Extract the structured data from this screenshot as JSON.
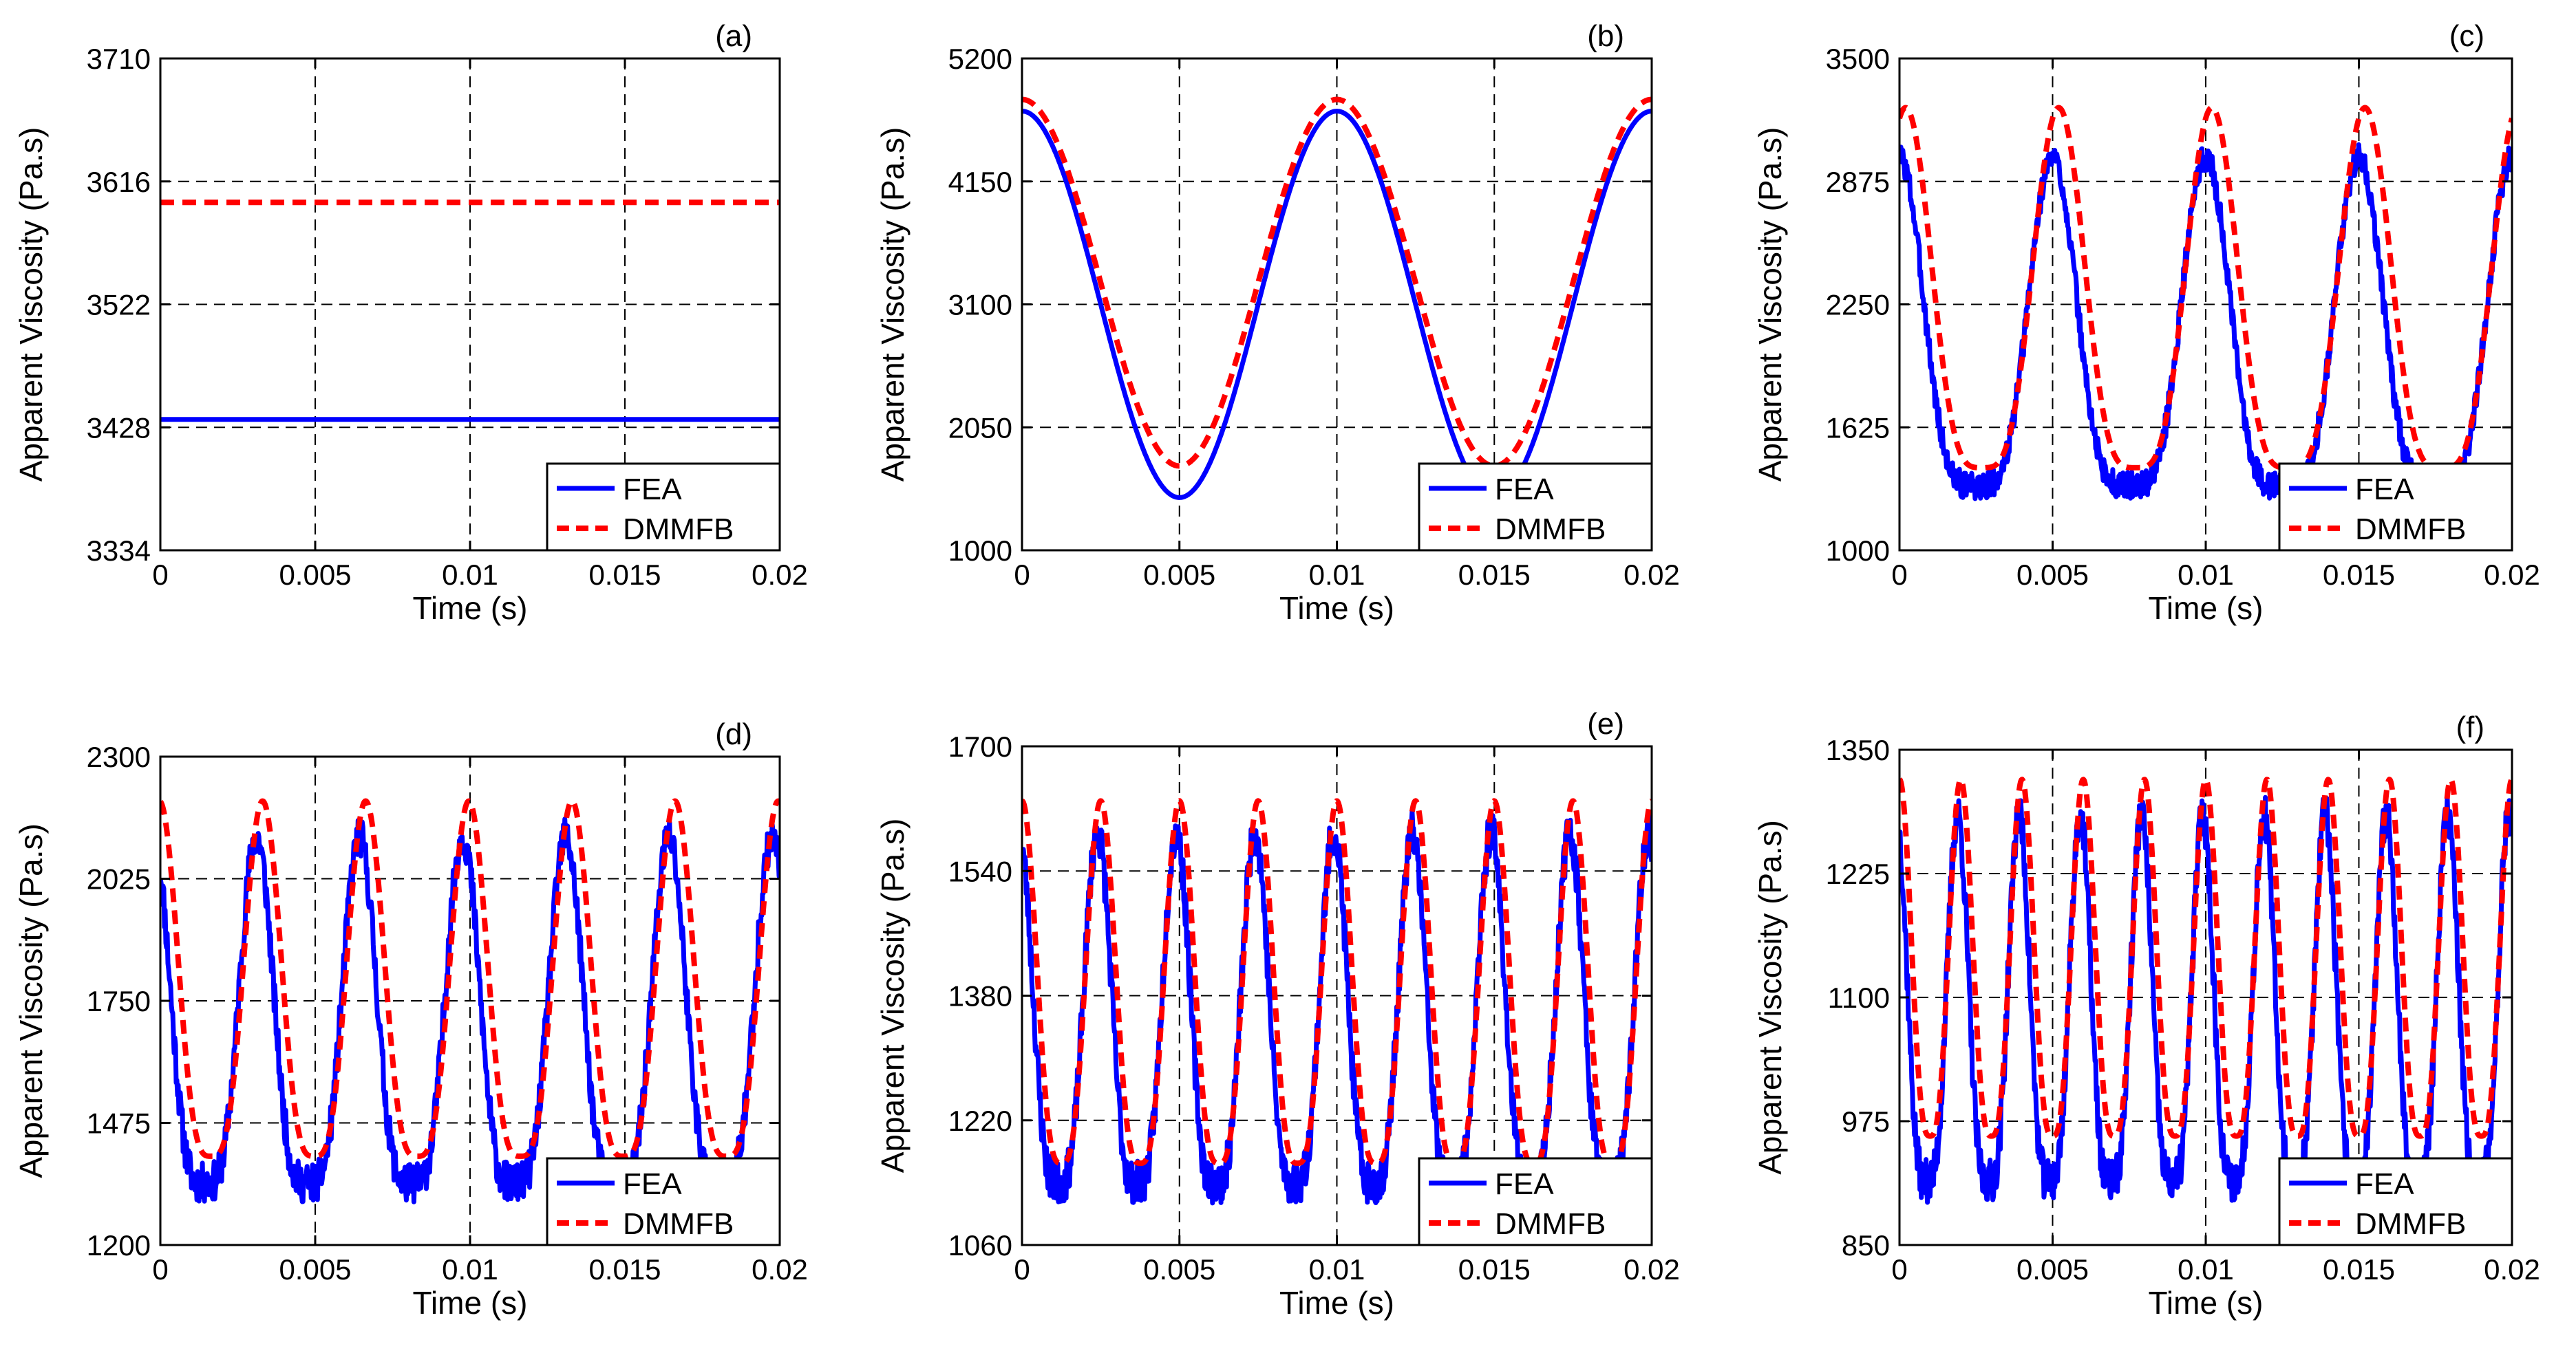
{
  "colors": {
    "fea": "#0000ff",
    "dmmfb": "#ff0000",
    "grid": "#000000",
    "axis": "#000000"
  },
  "legend_labels": [
    "FEA",
    "DMMFB"
  ],
  "chart_data": [
    {
      "type": "line",
      "tag": "(a)",
      "title": "",
      "xlabel": "Time (s)",
      "ylabel": "Apparent Viscosity (Pa.s)",
      "xlim": [
        0,
        0.02
      ],
      "ylim": [
        3334,
        3710
      ],
      "xticks": [
        0,
        0.005,
        0.01,
        0.015,
        0.02
      ],
      "xtick_labels": [
        "0",
        "0.005",
        "0.01",
        "0.015",
        "0.02"
      ],
      "yticks": [
        3334,
        3428,
        3522,
        3616,
        3710
      ],
      "ytick_labels": [
        "3334",
        "3428",
        "3522",
        "3616",
        "3710"
      ],
      "legend_position": "bottom-right",
      "series": [
        {
          "name": "FEA",
          "model": "constant",
          "value": 3434,
          "noise": 0
        },
        {
          "name": "DMMFB",
          "model": "constant",
          "value": 3600,
          "noise": 0
        }
      ]
    },
    {
      "type": "line",
      "tag": "(b)",
      "title": "",
      "xlabel": "Time (s)",
      "ylabel": "Apparent Viscosity (Pa.s)",
      "xlim": [
        0,
        0.02
      ],
      "ylim": [
        1000,
        5200
      ],
      "xticks": [
        0,
        0.005,
        0.01,
        0.015,
        0.02
      ],
      "xtick_labels": [
        "0",
        "0.005",
        "0.01",
        "0.015",
        "0.02"
      ],
      "yticks": [
        1000,
        2050,
        3100,
        4150,
        5200
      ],
      "ytick_labels": [
        "1000",
        "2050",
        "3100",
        "4150",
        "5200"
      ],
      "legend_position": "bottom-right",
      "series": [
        {
          "name": "FEA",
          "model": "periodic",
          "min": 1450,
          "max": 4750,
          "period": 0.01,
          "peak_at": 0,
          "shape": 1.0,
          "noise": 0
        },
        {
          "name": "DMMFB",
          "model": "periodic",
          "min": 1720,
          "max": 4850,
          "period": 0.01,
          "peak_at": 0,
          "shape": 1.0,
          "noise": 0
        }
      ]
    },
    {
      "type": "line",
      "tag": "(c)",
      "title": "",
      "xlabel": "Time (s)",
      "ylabel": "Apparent Viscosity (Pa.s)",
      "xlim": [
        0,
        0.02
      ],
      "ylim": [
        1000,
        3500
      ],
      "xticks": [
        0,
        0.005,
        0.01,
        0.015,
        0.02
      ],
      "xtick_labels": [
        "0",
        "0.005",
        "0.01",
        "0.015",
        "0.02"
      ],
      "yticks": [
        1000,
        1625,
        2250,
        2875,
        3500
      ],
      "ytick_labels": [
        "1000",
        "1625",
        "2250",
        "2875",
        "3500"
      ],
      "legend_position": "bottom-right",
      "series": [
        {
          "name": "FEA",
          "model": "periodic",
          "min": 1330,
          "max": 3000,
          "period": 0.005,
          "peak_at": 0.005,
          "shape": 2.2,
          "noise": 70,
          "seed": 3
        },
        {
          "name": "DMMFB",
          "model": "periodic",
          "min": 1420,
          "max": 3250,
          "period": 0.005,
          "peak_at": 0.0052,
          "shape": 1.9,
          "noise": 0
        }
      ]
    },
    {
      "type": "line",
      "tag": "(d)",
      "title": "",
      "xlabel": "Time (s)",
      "ylabel": "Apparent Viscosity (Pa.s)",
      "xlim": [
        0,
        0.02
      ],
      "ylim": [
        1200,
        2300
      ],
      "xticks": [
        0,
        0.005,
        0.01,
        0.015,
        0.02
      ],
      "xtick_labels": [
        "0",
        "0.005",
        "0.01",
        "0.015",
        "0.02"
      ],
      "yticks": [
        1200,
        1475,
        1750,
        2025,
        2300
      ],
      "ytick_labels": [
        "1200",
        "1475",
        "1750",
        "2025",
        "2300"
      ],
      "legend_position": "bottom-right",
      "series": [
        {
          "name": "FEA",
          "model": "periodic",
          "min": 1340,
          "max": 2120,
          "period": 0.00333,
          "peak_at": 0.0031,
          "shape": 2.0,
          "noise": 45,
          "seed": 11
        },
        {
          "name": "DMMFB",
          "model": "periodic",
          "min": 1400,
          "max": 2200,
          "period": 0.00333,
          "peak_at": 0.0033,
          "shape": 1.7,
          "noise": 0
        }
      ]
    },
    {
      "type": "line",
      "tag": "(e)",
      "title": "",
      "xlabel": "Time (s)",
      "ylabel": "Apparent Viscosity (Pa.s)",
      "xlim": [
        0,
        0.02
      ],
      "ylim": [
        1060,
        1700
      ],
      "xticks": [
        0,
        0.005,
        0.01,
        0.015,
        0.02
      ],
      "xtick_labels": [
        "0",
        "0.005",
        "0.01",
        "0.015",
        "0.02"
      ],
      "yticks": [
        1060,
        1220,
        1380,
        1540,
        1700
      ],
      "ytick_labels": [
        "1060",
        "1220",
        "1380",
        "1540",
        "1700"
      ],
      "legend_position": "bottom-right",
      "series": [
        {
          "name": "FEA",
          "model": "periodic",
          "min": 1140,
          "max": 1590,
          "period": 0.0025,
          "peak_at": 0.0024,
          "shape": 1.8,
          "noise": 28,
          "seed": 23
        },
        {
          "name": "DMMFB",
          "model": "periodic",
          "min": 1165,
          "max": 1630,
          "period": 0.0025,
          "peak_at": 0.0025,
          "shape": 1.6,
          "noise": 0
        }
      ]
    },
    {
      "type": "line",
      "tag": "(f)",
      "title": "",
      "xlabel": "Time (s)",
      "ylabel": "Apparent Viscosity (Pa.s)",
      "xlim": [
        0,
        0.02
      ],
      "ylim": [
        850,
        1350
      ],
      "xticks": [
        0,
        0.005,
        0.01,
        0.015,
        0.02
      ],
      "xtick_labels": [
        "0",
        "0.005",
        "0.01",
        "0.015",
        "0.02"
      ],
      "yticks": [
        850,
        975,
        1100,
        1225,
        1350
      ],
      "ytick_labels": [
        "850",
        "975",
        "1100",
        "1225",
        "1350"
      ],
      "legend_position": "bottom-right",
      "series": [
        {
          "name": "FEA",
          "model": "periodic",
          "min": 915,
          "max": 1285,
          "period": 0.002,
          "peak_at": 0.0019,
          "shape": 1.8,
          "noise": 22,
          "seed": 37
        },
        {
          "name": "DMMFB",
          "model": "periodic",
          "min": 960,
          "max": 1320,
          "period": 0.002,
          "peak_at": 0.002,
          "shape": 1.5,
          "noise": 0
        }
      ]
    }
  ]
}
